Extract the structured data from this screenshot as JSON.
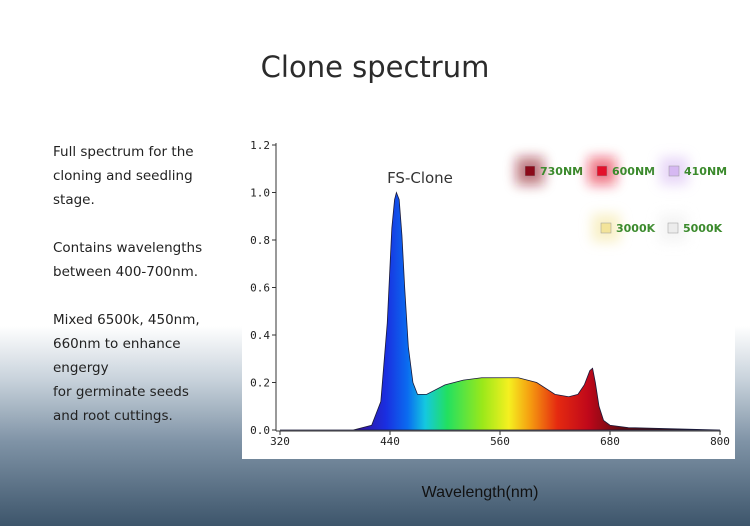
{
  "title": "Clone spectrum",
  "description": [
    [
      "Full spectrum for the",
      "cloning and seedling",
      "stage."
    ],
    [
      "Contains wavelengths",
      "between 400-700nm."
    ],
    [
      "Mixed 6500k, 450nm,",
      "660nm to enhance",
      "engergy",
      "for germinate seeds",
      "and root cuttings."
    ]
  ],
  "chart_data": {
    "type": "area",
    "annotation": "FS-Clone",
    "xlabel": "Wavelength(nm)",
    "x": [
      320,
      400,
      420,
      430,
      437,
      442,
      445,
      447,
      450,
      453,
      456,
      460,
      465,
      470,
      480,
      500,
      520,
      540,
      560,
      580,
      600,
      620,
      635,
      645,
      652,
      658,
      661,
      664,
      668,
      673,
      680,
      700,
      800
    ],
    "values": [
      0.0,
      0.0,
      0.02,
      0.12,
      0.45,
      0.85,
      0.97,
      1.0,
      0.97,
      0.82,
      0.6,
      0.35,
      0.2,
      0.15,
      0.15,
      0.19,
      0.21,
      0.22,
      0.22,
      0.22,
      0.2,
      0.15,
      0.14,
      0.15,
      0.19,
      0.25,
      0.26,
      0.2,
      0.1,
      0.04,
      0.02,
      0.01,
      0.0
    ],
    "xlim": [
      320,
      800
    ],
    "ylim": [
      0,
      1.2
    ],
    "xticks": [
      320,
      440,
      560,
      680,
      800
    ],
    "yticks": [
      {
        "value": 0,
        "label": "0.0"
      },
      0.2,
      0.4,
      0.6,
      0.8,
      {
        "value": 1,
        "label": "1.0"
      },
      1.2
    ],
    "legend_items": [
      {
        "label": "730NM",
        "color": "#8b0a1a"
      },
      {
        "label": "600NM",
        "color": "#e3102a"
      },
      {
        "label": "410NM",
        "color": "#d6b8f2"
      },
      {
        "label": "3000K",
        "color": "#f3e49a"
      },
      {
        "label": "5000K",
        "color": "#ececec"
      }
    ]
  }
}
